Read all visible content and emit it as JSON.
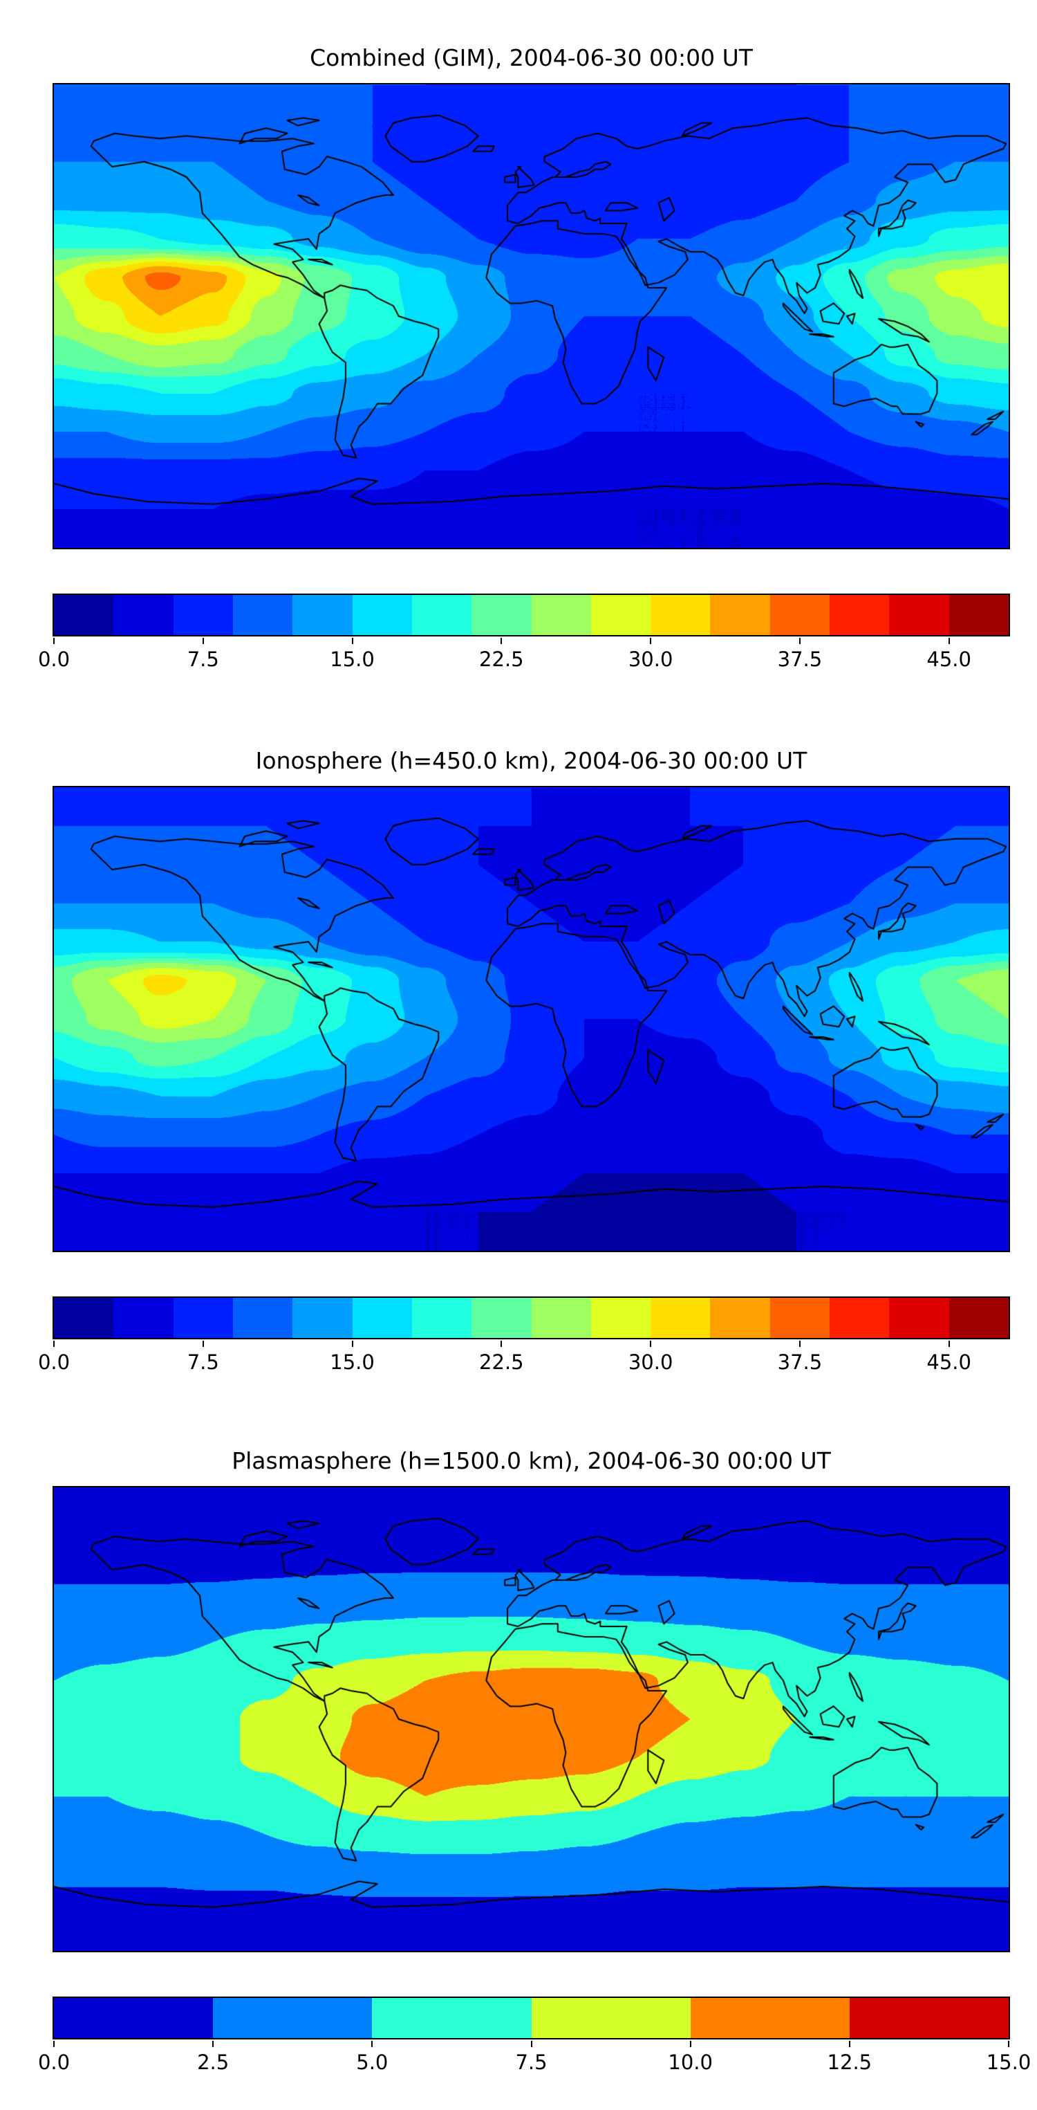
{
  "figure": {
    "background": "#ffffff",
    "text_color": "#000000",
    "frame_color": "#000000",
    "colormap_accent_low": "#0000d5",
    "colormap_accent_high": "#d50000"
  },
  "chart_data": [
    {
      "type": "heatmap",
      "subtype": "filled_contour_world_map",
      "title": "Combined (GIM), 2004-06-30 00:00 UT",
      "projection": "equirectangular",
      "lon_range": [
        -180,
        180
      ],
      "lat_range": [
        -90,
        90
      ],
      "grid_lon_step": 20,
      "grid_lat_step": 15,
      "colormap": "jet",
      "vmin": 0,
      "vmax": 48,
      "n_levels": 16,
      "colorbar_ticks": [
        0,
        7.5,
        15,
        22.5,
        30,
        37.5,
        45
      ],
      "colorbar_tick_labels": [
        "0.0",
        "7.5",
        "15.0",
        "22.5",
        "30.0",
        "37.5",
        "45.0"
      ],
      "legend_position": "bottom",
      "grid_on": false,
      "values": [
        [
          10,
          10,
          10,
          10,
          10,
          10,
          9,
          9,
          8,
          8,
          8,
          8,
          8,
          8,
          9,
          9,
          10,
          10,
          10
        ],
        [
          11,
          11,
          11,
          11,
          10,
          10,
          9,
          8,
          8,
          7,
          7,
          7,
          7,
          8,
          8,
          9,
          10,
          11,
          11
        ],
        [
          12,
          12,
          12,
          12,
          11,
          10,
          9,
          8,
          7,
          6,
          6,
          6,
          7,
          7,
          8,
          9,
          11,
          12,
          12
        ],
        [
          14,
          14,
          14,
          13,
          12,
          11,
          10,
          9,
          8,
          7,
          7,
          7,
          7,
          8,
          9,
          11,
          13,
          14,
          14
        ],
        [
          20,
          19,
          18,
          17,
          16,
          14,
          12,
          10,
          9,
          8,
          8,
          9,
          9,
          10,
          12,
          14,
          17,
          19,
          20
        ],
        [
          27,
          32,
          37,
          34,
          28,
          23,
          20,
          16,
          13,
          11,
          10,
          10,
          11,
          13,
          16,
          20,
          25,
          28,
          30
        ],
        [
          26,
          29,
          33,
          31,
          26,
          22,
          20,
          17,
          14,
          11,
          9,
          9,
          9,
          11,
          14,
          18,
          22,
          26,
          28
        ],
        [
          22,
          24,
          26,
          25,
          22,
          19,
          17,
          15,
          12,
          10,
          8,
          7,
          7,
          9,
          12,
          15,
          19,
          22,
          23
        ],
        [
          16,
          17,
          18,
          18,
          16,
          14,
          13,
          11,
          10,
          8,
          7,
          6,
          6,
          7,
          9,
          11,
          14,
          16,
          17
        ],
        [
          12,
          12,
          13,
          13,
          12,
          11,
          10,
          9,
          8,
          7,
          6,
          6,
          6,
          6,
          7,
          9,
          10,
          11,
          12
        ],
        [
          8,
          8,
          8,
          8,
          8,
          7,
          7,
          6,
          6,
          5,
          5,
          4,
          4,
          5,
          5,
          6,
          7,
          8,
          8
        ],
        [
          6,
          6,
          6,
          6,
          5,
          5,
          5,
          5,
          4,
          4,
          4,
          3,
          3,
          3,
          4,
          4,
          5,
          5,
          6
        ],
        [
          5,
          5,
          5,
          5,
          5,
          5,
          4,
          4,
          4,
          4,
          3,
          3,
          3,
          3,
          4,
          4,
          4,
          5,
          5
        ]
      ]
    },
    {
      "type": "heatmap",
      "subtype": "filled_contour_world_map",
      "title": "Ionosphere  (h=450.0 km), 2004-06-30 00:00 UT",
      "projection": "equirectangular",
      "lon_range": [
        -180,
        180
      ],
      "lat_range": [
        -90,
        90
      ],
      "grid_lon_step": 20,
      "grid_lat_step": 15,
      "colormap": "jet",
      "vmin": 0,
      "vmax": 48,
      "n_levels": 16,
      "colorbar_ticks": [
        0,
        7.5,
        15,
        22.5,
        30,
        37.5,
        45
      ],
      "colorbar_tick_labels": [
        "0.0",
        "7.5",
        "15.0",
        "22.5",
        "30.0",
        "37.5",
        "45.0"
      ],
      "legend_position": "bottom",
      "grid_on": false,
      "values": [
        [
          8,
          8,
          8,
          8,
          8,
          8,
          7,
          7,
          7,
          6,
          6,
          6,
          6,
          7,
          7,
          7,
          8,
          8,
          8
        ],
        [
          9,
          9,
          9,
          9,
          9,
          8,
          8,
          7,
          6,
          6,
          5,
          5,
          6,
          6,
          7,
          7,
          8,
          9,
          9
        ],
        [
          10,
          10,
          10,
          10,
          10,
          9,
          8,
          7,
          6,
          5,
          5,
          5,
          5,
          6,
          7,
          8,
          9,
          10,
          10
        ],
        [
          12,
          12,
          12,
          12,
          11,
          10,
          9,
          8,
          7,
          6,
          5,
          5,
          6,
          7,
          8,
          9,
          11,
          12,
          12
        ],
        [
          16,
          16,
          15,
          15,
          14,
          12,
          10,
          9,
          8,
          7,
          6,
          6,
          7,
          8,
          10,
          12,
          14,
          15,
          16
        ],
        [
          23,
          27,
          31,
          29,
          24,
          20,
          17,
          13,
          10,
          8,
          7,
          7,
          8,
          10,
          13,
          16,
          20,
          24,
          26
        ],
        [
          22,
          25,
          28,
          27,
          23,
          19,
          17,
          14,
          11,
          8,
          6,
          6,
          7,
          9,
          12,
          15,
          19,
          22,
          24
        ],
        [
          18,
          20,
          22,
          21,
          18,
          16,
          14,
          12,
          10,
          8,
          6,
          5,
          5,
          7,
          10,
          13,
          16,
          19,
          20
        ],
        [
          13,
          14,
          15,
          15,
          13,
          12,
          11,
          9,
          8,
          7,
          5,
          4,
          4,
          5,
          7,
          9,
          12,
          13,
          14
        ],
        [
          9,
          10,
          10,
          10,
          10,
          9,
          8,
          7,
          6,
          5,
          4,
          4,
          4,
          4,
          5,
          7,
          8,
          9,
          9
        ],
        [
          6,
          6,
          6,
          6,
          6,
          6,
          5,
          5,
          4,
          4,
          3,
          3,
          3,
          3,
          4,
          5,
          5,
          6,
          6
        ],
        [
          4,
          4,
          4,
          4,
          4,
          4,
          4,
          3,
          3,
          3,
          2,
          2,
          2,
          2,
          3,
          3,
          4,
          4,
          4
        ],
        [
          3,
          3,
          3,
          3,
          3,
          3,
          3,
          3,
          3,
          2,
          2,
          2,
          2,
          2,
          3,
          3,
          3,
          3,
          3
        ]
      ]
    },
    {
      "type": "heatmap",
      "subtype": "filled_contour_world_map",
      "title": "Plasmasphere (h=1500.0 km), 2004-06-30 00:00 UT",
      "projection": "equirectangular",
      "lon_range": [
        -180,
        180
      ],
      "lat_range": [
        -90,
        90
      ],
      "grid_lon_step": 20,
      "grid_lat_step": 15,
      "colormap": "jet",
      "vmin": 0,
      "vmax": 15,
      "n_levels": 6,
      "colorbar_ticks": [
        0,
        2.5,
        5,
        7.5,
        10,
        12.5,
        15
      ],
      "colorbar_tick_labels": [
        "0.0",
        "2.5",
        "5.0",
        "7.5",
        "10.0",
        "12.5",
        "15.0"
      ],
      "legend_position": "bottom",
      "grid_on": false,
      "values": [
        [
          1,
          1,
          1,
          1,
          1,
          1,
          1,
          1,
          1,
          1,
          1,
          1,
          1,
          1,
          1,
          1,
          1,
          1,
          1
        ],
        [
          1.5,
          1.5,
          1.5,
          1.5,
          1.5,
          1.5,
          1.6,
          1.6,
          1.6,
          1.6,
          1.6,
          1.6,
          1.5,
          1.5,
          1.5,
          1.5,
          1.5,
          1.5,
          1.5
        ],
        [
          2,
          2,
          2,
          2,
          2.1,
          2.2,
          2.3,
          2.3,
          2.3,
          2.3,
          2.3,
          2.2,
          2.2,
          2.1,
          2,
          2,
          2,
          2,
          2
        ],
        [
          3,
          3,
          3,
          3.2,
          3.5,
          3.8,
          4,
          4.2,
          4.2,
          4.2,
          4,
          3.8,
          3.6,
          3.4,
          3.2,
          3,
          3,
          3,
          3
        ],
        [
          4,
          4.2,
          4.5,
          5,
          5.5,
          6,
          6.5,
          6.8,
          7,
          7,
          6.8,
          6.5,
          6,
          5.5,
          5,
          4.5,
          4.2,
          4,
          4
        ],
        [
          5,
          5.5,
          6,
          6.5,
          7,
          8,
          9,
          10,
          10.5,
          11,
          11,
          10.5,
          9,
          8,
          7,
          6.5,
          6,
          5.5,
          5
        ],
        [
          5.5,
          6,
          6.5,
          7,
          8,
          9,
          10.5,
          11.5,
          12,
          12,
          11.5,
          11,
          10,
          8.5,
          7.5,
          7,
          6.5,
          6,
          5.5
        ],
        [
          5.5,
          6,
          6.5,
          7,
          8,
          9.5,
          11,
          12,
          12,
          11.5,
          11,
          10,
          9,
          8,
          7,
          6.5,
          6,
          6,
          5.5
        ],
        [
          5,
          5,
          5.5,
          6,
          6.5,
          7.5,
          9,
          10,
          9.5,
          9,
          8.5,
          7.5,
          6.5,
          6,
          5.5,
          5,
          5,
          5,
          5
        ],
        [
          4,
          4,
          4,
          4.5,
          5,
          5.5,
          6,
          6.5,
          6.5,
          6,
          5.5,
          5,
          4.5,
          4.2,
          4,
          4,
          4,
          4,
          4
        ],
        [
          2.8,
          2.8,
          2.8,
          3,
          3,
          3.2,
          3.5,
          3.5,
          3.5,
          3.4,
          3.2,
          3,
          3,
          2.8,
          2.8,
          2.8,
          2.8,
          2.8,
          2.8
        ],
        [
          1.8,
          1.8,
          1.8,
          1.8,
          1.8,
          2,
          2,
          2,
          2,
          2,
          2,
          1.8,
          1.8,
          1.8,
          1.8,
          1.8,
          1.8,
          1.8,
          1.8
        ],
        [
          1.2,
          1.2,
          1.2,
          1.2,
          1.2,
          1.2,
          1.2,
          1.2,
          1.2,
          1.2,
          1.2,
          1.2,
          1.2,
          1.2,
          1.2,
          1.2,
          1.2,
          1.2,
          1.2
        ]
      ]
    }
  ]
}
